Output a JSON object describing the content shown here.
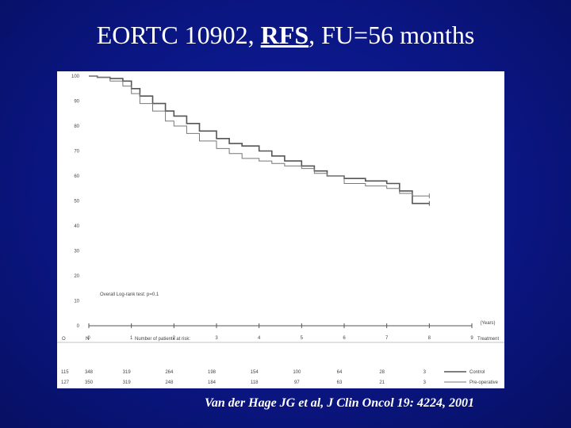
{
  "slide": {
    "title_prefix": "EORTC 10902, ",
    "title_emphasis": "RFS",
    "title_suffix": ", FU=56 months",
    "citation": "Van der Hage JG et al, J Clin Oncol 19: 4224, 2001"
  },
  "colors": {
    "background": "#0a1580",
    "control": "#555555",
    "preoperative": "#777777"
  },
  "chart_data": {
    "type": "line",
    "title": "",
    "xlabel": "(Years)",
    "ylabel": "",
    "xlim": [
      0,
      9
    ],
    "ylim": [
      0,
      100
    ],
    "x_ticks": [
      "0",
      "1",
      "2",
      "3",
      "4",
      "5",
      "6",
      "7",
      "8",
      "9"
    ],
    "y_ticks": [
      "0",
      "10",
      "20",
      "30",
      "40",
      "50",
      "60",
      "70",
      "80",
      "90",
      "100"
    ],
    "annotation": "Overall Log-rank test: p=0.1",
    "legend_title": "Treatment",
    "series": [
      {
        "name": "Control",
        "x": [
          0,
          0.2,
          0.5,
          0.8,
          1.0,
          1.2,
          1.5,
          1.8,
          2.0,
          2.3,
          2.6,
          3.0,
          3.3,
          3.6,
          4.0,
          4.3,
          4.6,
          5.0,
          5.3,
          5.6,
          6.0,
          6.5,
          7.0,
          7.3,
          7.6,
          8.0
        ],
        "y": [
          100,
          99.5,
          99,
          98,
          95,
          92,
          89,
          86,
          84,
          81,
          78,
          75,
          73,
          72,
          70,
          68,
          66,
          64,
          62,
          60,
          59,
          58,
          57,
          54,
          49,
          49
        ]
      },
      {
        "name": "Pre-operative",
        "x": [
          0,
          0.2,
          0.5,
          0.8,
          1.0,
          1.2,
          1.5,
          1.8,
          2.0,
          2.3,
          2.6,
          3.0,
          3.3,
          3.6,
          4.0,
          4.3,
          4.6,
          5.0,
          5.3,
          5.6,
          6.0,
          6.5,
          7.0,
          7.3,
          7.6,
          8.0
        ],
        "y": [
          100,
          99.5,
          98,
          96,
          93,
          89,
          86,
          82,
          80,
          77,
          74,
          71,
          69,
          67,
          66,
          65,
          64,
          63,
          61,
          60,
          57,
          56,
          55,
          53,
          52,
          52
        ]
      }
    ],
    "risk_table": {
      "headers": {
        "observed": "O",
        "number": "N",
        "at_risk_title": "Number of patients at risk:",
        "treatment": "Treatment"
      },
      "rows": [
        {
          "observed": "115",
          "n": "348",
          "counts": [
            "319",
            "264",
            "198",
            "154",
            "100",
            "64",
            "28",
            "3"
          ],
          "treatment": "Control"
        },
        {
          "observed": "127",
          "n": "350",
          "counts": [
            "319",
            "248",
            "184",
            "118",
            "97",
            "63",
            "21",
            "3"
          ],
          "treatment": "Pre-operative"
        }
      ]
    }
  }
}
